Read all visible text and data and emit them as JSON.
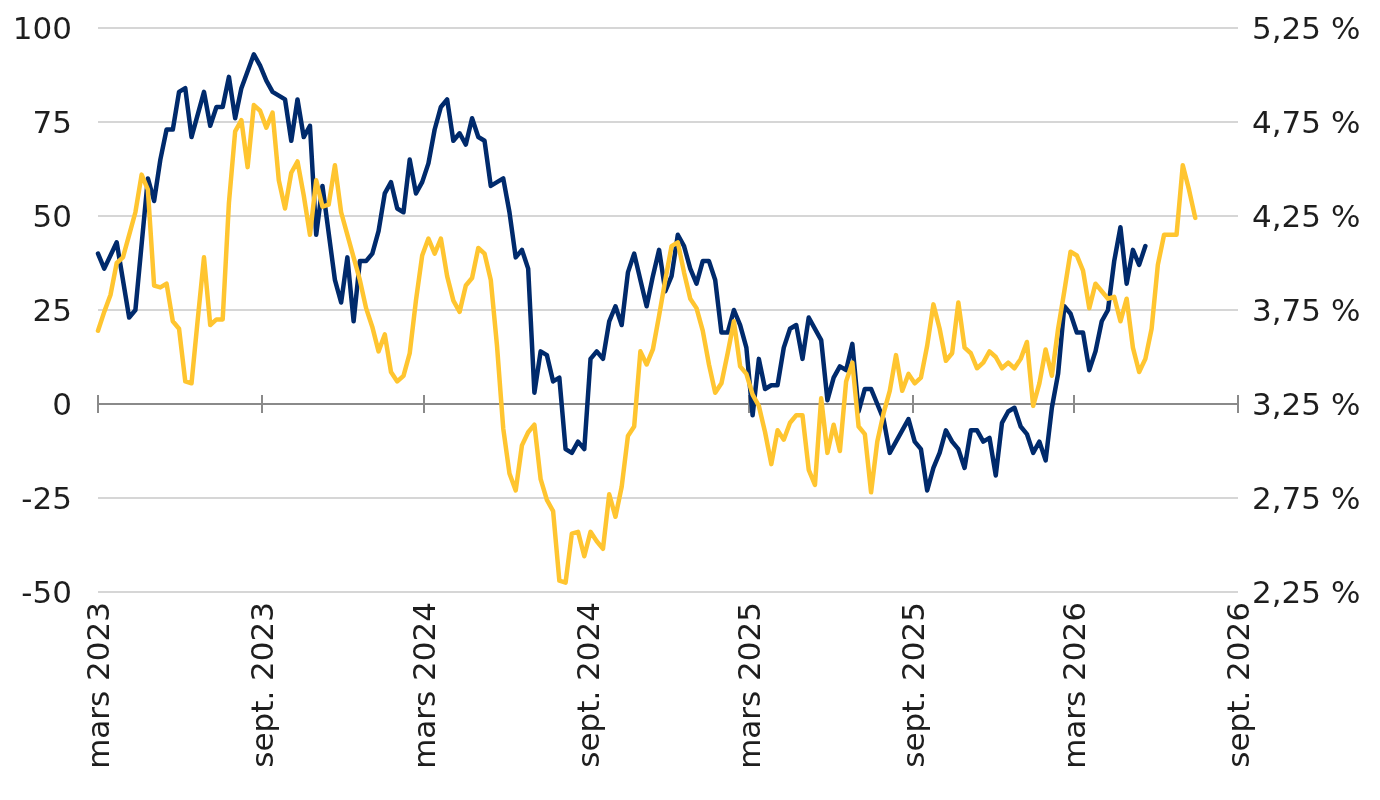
{
  "chart_data": {
    "type": "line",
    "xlim": [
      "2023-03-01",
      "2026-09-01"
    ],
    "xticks": [
      {
        "value": "2023-03-01",
        "label": "mars 2023"
      },
      {
        "value": "2023-09-01",
        "label": "sept. 2023"
      },
      {
        "value": "2024-03-01",
        "label": "mars 2024"
      },
      {
        "value": "2024-09-01",
        "label": "sept. 2024"
      },
      {
        "value": "2025-03-01",
        "label": "mars 2025"
      },
      {
        "value": "2025-09-01",
        "label": "sept. 2025"
      },
      {
        "value": "2026-03-01",
        "label": "mars 2026"
      },
      {
        "value": "2026-09-01",
        "label": "sept. 2026"
      }
    ],
    "ylim": [
      -50,
      100
    ],
    "yticks": [
      -50,
      -25,
      0,
      25,
      50,
      75,
      100
    ],
    "y2lim": [
      2.25,
      5.25
    ],
    "y2ticks": [
      {
        "value": 2.25,
        "label": "2,25 %"
      },
      {
        "value": 2.75,
        "label": "2,75 %"
      },
      {
        "value": 3.25,
        "label": "3,25 %"
      },
      {
        "value": 3.75,
        "label": "3,75 %"
      },
      {
        "value": 4.25,
        "label": "4,25 %"
      },
      {
        "value": 4.75,
        "label": "4,75 %"
      },
      {
        "value": 5.25,
        "label": "5,25 %"
      }
    ],
    "grid": "y",
    "marker": "none",
    "line_style": "solid",
    "series": [
      {
        "color": "#002a6c",
        "x": [
          "2023-03-01",
          "2023-03-08",
          "2023-03-22",
          "2023-04-05",
          "2023-04-12",
          "2023-04-26",
          "2023-05-03",
          "2023-05-10",
          "2023-05-17",
          "2023-05-24",
          "2023-05-31",
          "2023-06-07",
          "2023-06-14",
          "2023-06-28",
          "2023-07-05",
          "2023-07-12",
          "2023-07-19",
          "2023-07-26",
          "2023-08-02",
          "2023-08-09",
          "2023-08-23",
          "2023-08-30",
          "2023-09-06",
          "2023-09-13",
          "2023-09-20",
          "2023-09-27",
          "2023-10-04",
          "2023-10-11",
          "2023-10-18",
          "2023-10-25",
          "2023-11-01",
          "2023-11-08",
          "2023-11-22",
          "2023-11-29",
          "2023-12-06",
          "2023-12-13",
          "2023-12-20",
          "2023-12-27",
          "2024-01-03",
          "2024-01-10",
          "2024-01-17",
          "2024-01-24",
          "2024-01-31",
          "2024-02-07",
          "2024-02-14",
          "2024-02-21",
          "2024-02-28",
          "2024-03-06",
          "2024-03-13",
          "2024-03-20",
          "2024-03-27",
          "2024-04-03",
          "2024-04-10",
          "2024-04-17",
          "2024-04-24",
          "2024-05-01",
          "2024-05-08",
          "2024-05-15",
          "2024-05-22",
          "2024-05-29",
          "2024-06-05",
          "2024-06-12",
          "2024-06-19",
          "2024-06-26",
          "2024-07-03",
          "2024-07-10",
          "2024-07-17",
          "2024-07-24",
          "2024-07-31",
          "2024-08-07",
          "2024-08-14",
          "2024-08-21",
          "2024-08-28",
          "2024-09-04",
          "2024-09-11",
          "2024-09-18",
          "2024-09-25",
          "2024-10-02",
          "2024-10-09",
          "2024-10-16",
          "2024-10-23",
          "2024-10-30",
          "2024-11-06",
          "2024-11-13",
          "2024-11-20",
          "2024-11-27",
          "2024-12-04",
          "2024-12-11",
          "2024-12-18",
          "2024-12-25",
          "2025-01-01",
          "2025-01-08",
          "2025-01-15",
          "2025-01-22",
          "2025-01-29",
          "2025-02-05",
          "2025-02-12",
          "2025-02-19",
          "2025-02-26",
          "2025-03-05",
          "2025-03-12",
          "2025-03-19",
          "2025-03-26",
          "2025-04-02",
          "2025-04-09",
          "2025-04-16",
          "2025-04-23",
          "2025-04-30",
          "2025-05-07",
          "2025-05-14",
          "2025-05-21",
          "2025-05-28",
          "2025-06-04",
          "2025-06-11",
          "2025-06-18",
          "2025-06-25",
          "2025-07-02",
          "2025-07-09",
          "2025-07-16",
          "2025-07-23",
          "2025-07-30",
          "2025-08-06",
          "2025-08-13",
          "2025-08-20",
          "2025-08-27",
          "2025-09-03",
          "2025-09-10",
          "2025-09-17",
          "2025-09-24",
          "2025-10-01",
          "2025-10-08",
          "2025-10-15",
          "2025-10-22",
          "2025-10-29",
          "2025-11-05",
          "2025-11-12",
          "2025-11-19",
          "2025-11-26",
          "2025-12-03",
          "2025-12-10",
          "2025-12-17",
          "2025-12-24",
          "2025-12-31",
          "2026-01-07",
          "2026-01-14",
          "2026-01-21",
          "2026-01-28",
          "2026-02-04",
          "2026-02-11",
          "2026-02-18",
          "2026-02-25",
          "2026-03-04",
          "2026-03-11",
          "2026-03-18",
          "2026-03-25",
          "2026-04-01",
          "2026-04-08",
          "2026-04-15",
          "2026-04-22",
          "2026-04-29",
          "2026-05-06",
          "2026-05-13",
          "2026-05-20"
        ],
        "values": [
          40,
          36,
          43,
          23,
          25,
          60,
          54,
          65,
          73,
          73,
          83,
          84,
          71,
          83,
          74,
          79,
          79,
          87,
          76,
          84,
          93,
          90,
          86,
          83,
          82,
          81,
          70,
          81,
          71,
          74,
          45,
          58,
          33,
          27,
          39,
          22,
          38,
          38,
          40,
          46,
          56,
          59,
          52,
          51,
          65,
          56,
          59,
          64,
          73,
          79,
          81,
          70,
          72,
          69,
          76,
          71,
          70,
          58,
          59,
          60,
          51,
          39,
          41,
          36,
          3,
          14,
          13,
          6,
          7,
          -12,
          -13,
          -10,
          -12,
          12,
          14,
          12,
          22,
          26,
          21,
          35,
          40,
          33,
          26,
          34,
          41,
          30,
          34,
          45,
          42,
          36,
          32,
          38,
          38,
          33,
          19,
          19,
          25,
          21,
          15,
          -3,
          12,
          4,
          5,
          5,
          15,
          20,
          21,
          12,
          23,
          20,
          17,
          1,
          7,
          10,
          9,
          16,
          -2,
          4,
          4,
          0,
          -4,
          -13,
          -10,
          -7,
          -4,
          -10,
          -12,
          -23,
          -17,
          -13,
          -7,
          -10,
          -12,
          -17,
          -7,
          -7,
          -10,
          -9,
          -19,
          -5,
          -2,
          -1,
          -6,
          -8,
          -13,
          -10,
          -15,
          -1,
          8,
          26,
          24,
          19,
          19,
          9,
          14,
          22,
          25,
          38,
          47,
          32,
          41,
          37,
          42
        ]
      },
      {
        "color": "#ffc530",
        "axis": "y2",
        "x": [
          "2023-03-01",
          "2023-03-08",
          "2023-03-15",
          "2023-03-22",
          "2023-03-29",
          "2023-04-05",
          "2023-04-12",
          "2023-04-19",
          "2023-04-26",
          "2023-05-03",
          "2023-05-10",
          "2023-05-17",
          "2023-05-24",
          "2023-05-31",
          "2023-06-07",
          "2023-06-14",
          "2023-06-21",
          "2023-06-28",
          "2023-07-05",
          "2023-07-12",
          "2023-07-19",
          "2023-07-26",
          "2023-08-02",
          "2023-08-09",
          "2023-08-16",
          "2023-08-23",
          "2023-08-30",
          "2023-09-06",
          "2023-09-13",
          "2023-09-20",
          "2023-09-27",
          "2023-10-04",
          "2023-10-11",
          "2023-10-18",
          "2023-10-25",
          "2023-11-01",
          "2023-11-08",
          "2023-11-15",
          "2023-11-22",
          "2023-11-29",
          "2023-12-06",
          "2023-12-13",
          "2023-12-20",
          "2023-12-27",
          "2024-01-03",
          "2024-01-10",
          "2024-01-17",
          "2024-01-24",
          "2024-01-31",
          "2024-02-07",
          "2024-02-14",
          "2024-02-21",
          "2024-02-28",
          "2024-03-06",
          "2024-03-13",
          "2024-03-20",
          "2024-03-27",
          "2024-04-03",
          "2024-04-10",
          "2024-04-17",
          "2024-04-24",
          "2024-05-01",
          "2024-05-08",
          "2024-05-15",
          "2024-05-22",
          "2024-05-29",
          "2024-06-05",
          "2024-06-12",
          "2024-06-19",
          "2024-06-26",
          "2024-07-03",
          "2024-07-10",
          "2024-07-17",
          "2024-07-24",
          "2024-07-31",
          "2024-08-07",
          "2024-08-14",
          "2024-08-21",
          "2024-08-28",
          "2024-09-04",
          "2024-09-11",
          "2024-09-18",
          "2024-09-25",
          "2024-10-02",
          "2024-10-09",
          "2024-10-16",
          "2024-10-23",
          "2024-10-30",
          "2024-11-06",
          "2024-11-13",
          "2024-11-20",
          "2024-11-27",
          "2024-12-04",
          "2024-12-11",
          "2024-12-18",
          "2024-12-25",
          "2025-01-01",
          "2025-01-08",
          "2025-01-15",
          "2025-01-22",
          "2025-01-29",
          "2025-02-05",
          "2025-02-12",
          "2025-02-19",
          "2025-02-26",
          "2025-03-05",
          "2025-03-12",
          "2025-03-19",
          "2025-03-26",
          "2025-04-02",
          "2025-04-09",
          "2025-04-16",
          "2025-04-23",
          "2025-04-30",
          "2025-05-07",
          "2025-05-14",
          "2025-05-21",
          "2025-05-28",
          "2025-06-04",
          "2025-06-11",
          "2025-06-18",
          "2025-06-25",
          "2025-07-02",
          "2025-07-09",
          "2025-07-16",
          "2025-07-23",
          "2025-07-30",
          "2025-08-06",
          "2025-08-13",
          "2025-08-20",
          "2025-08-27",
          "2025-09-03",
          "2025-09-10",
          "2025-09-17",
          "2025-09-24",
          "2025-10-01",
          "2025-10-08",
          "2025-10-15",
          "2025-10-22",
          "2025-10-29",
          "2025-11-05",
          "2025-11-12",
          "2025-11-19",
          "2025-11-26",
          "2025-12-03",
          "2025-12-10",
          "2025-12-17",
          "2025-12-24",
          "2025-12-31",
          "2026-01-07",
          "2026-01-14",
          "2026-01-21",
          "2026-01-28",
          "2026-02-04",
          "2026-02-11",
          "2026-02-18",
          "2026-02-25",
          "2026-03-04",
          "2026-03-11",
          "2026-03-18",
          "2026-03-25",
          "2026-04-01",
          "2026-04-08",
          "2026-04-15",
          "2026-04-22",
          "2026-04-29",
          "2026-05-06",
          "2026-05-13",
          "2026-05-20",
          "2026-05-27",
          "2026-06-03",
          "2026-06-10",
          "2026-06-17",
          "2026-06-24",
          "2026-07-01",
          "2026-07-08",
          "2026-07-15"
        ],
        "values": [
          3.64,
          3.74,
          3.83,
          4.0,
          4.03,
          4.15,
          4.27,
          4.47,
          4.39,
          3.88,
          3.87,
          3.89,
          3.69,
          3.65,
          3.37,
          3.36,
          3.7,
          4.03,
          3.67,
          3.7,
          3.7,
          4.32,
          4.7,
          4.76,
          4.51,
          4.84,
          4.81,
          4.72,
          4.8,
          4.44,
          4.29,
          4.48,
          4.54,
          4.36,
          4.15,
          4.44,
          4.3,
          4.31,
          4.52,
          4.27,
          4.15,
          4.03,
          3.91,
          3.76,
          3.66,
          3.53,
          3.62,
          3.42,
          3.37,
          3.4,
          3.52,
          3.8,
          4.04,
          4.13,
          4.05,
          4.13,
          3.93,
          3.8,
          3.74,
          3.88,
          3.92,
          4.08,
          4.05,
          3.91,
          3.56,
          3.12,
          2.88,
          2.79,
          3.03,
          3.1,
          3.14,
          2.85,
          2.74,
          2.68,
          2.31,
          2.3,
          2.56,
          2.57,
          2.44,
          2.57,
          2.52,
          2.48,
          2.77,
          2.65,
          2.81,
          3.08,
          3.13,
          3.53,
          3.46,
          3.54,
          3.72,
          3.91,
          4.09,
          4.11,
          3.95,
          3.81,
          3.76,
          3.64,
          3.46,
          3.31,
          3.36,
          3.52,
          3.69,
          3.45,
          3.41,
          3.3,
          3.24,
          3.1,
          2.93,
          3.11,
          3.06,
          3.15,
          3.19,
          3.19,
          2.9,
          2.82,
          3.28,
          2.99,
          3.14,
          3.0,
          3.37,
          3.47,
          3.13,
          3.09,
          2.78,
          3.05,
          3.2,
          3.32,
          3.51,
          3.32,
          3.41,
          3.36,
          3.39,
          3.56,
          3.78,
          3.65,
          3.48,
          3.52,
          3.79,
          3.55,
          3.52,
          3.44,
          3.47,
          3.53,
          3.5,
          3.44,
          3.47,
          3.44,
          3.49,
          3.58,
          3.24,
          3.36,
          3.54,
          3.4,
          3.65,
          3.85,
          4.06,
          4.04,
          3.96,
          3.76,
          3.89,
          3.85,
          3.81,
          3.82,
          3.69,
          3.81,
          3.55,
          3.42,
          3.49,
          3.65,
          3.99,
          4.15,
          4.15,
          4.15,
          4.52,
          4.39,
          4.24
        ]
      }
    ]
  }
}
